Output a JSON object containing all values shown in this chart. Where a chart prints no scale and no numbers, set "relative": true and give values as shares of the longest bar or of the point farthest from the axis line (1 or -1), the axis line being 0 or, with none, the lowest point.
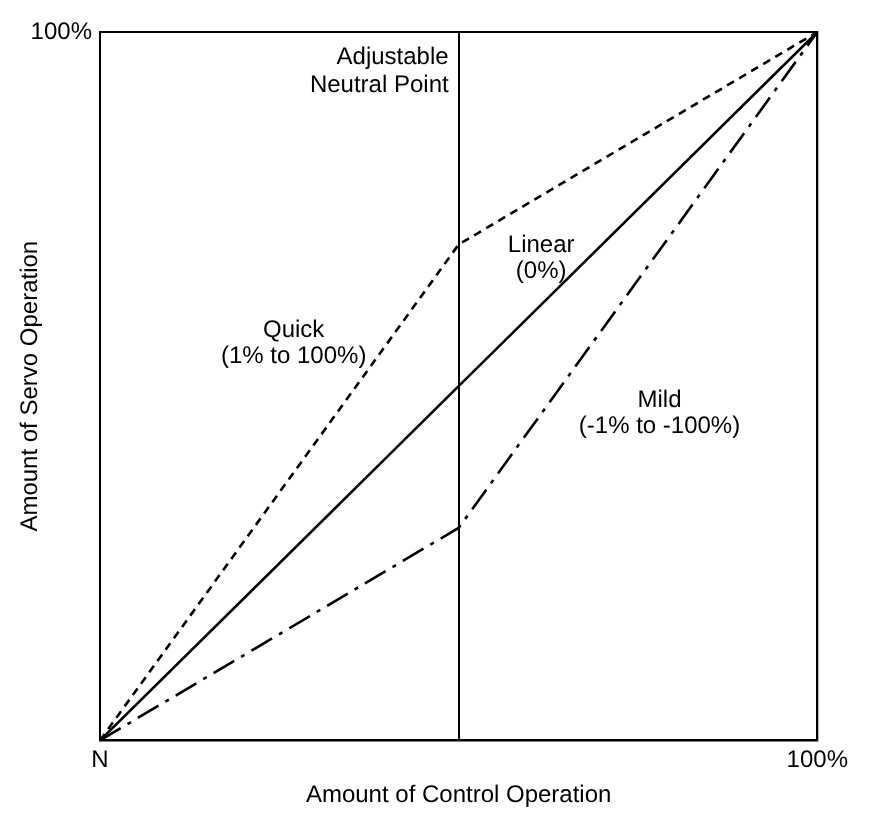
{
  "chart_data": {
    "type": "line",
    "relative": true,
    "xlabel": "Amount of Control Operation",
    "ylabel": "Amount of Servo Operation",
    "categories": [
      "N",
      null,
      "100%"
    ],
    "grid": "x",
    "legend": false,
    "marker": "none",
    "annotations": [
      "100%",
      "Adjustable Neutral Point"
    ],
    "series": [
      {
        "name": "Quick (1% to 100%)",
        "color": "#000000",
        "line_style": "dashed",
        "values": [
          0,
          0.7,
          1
        ]
      },
      {
        "name": "Linear (0%)",
        "color": "#000000",
        "line_style": "solid",
        "values": [
          0,
          0.5,
          1
        ]
      },
      {
        "name": "Mild (-1% to -100%)",
        "color": "#000000",
        "line_style": "dashdot",
        "values": [
          0,
          0.3,
          1
        ]
      }
    ]
  }
}
